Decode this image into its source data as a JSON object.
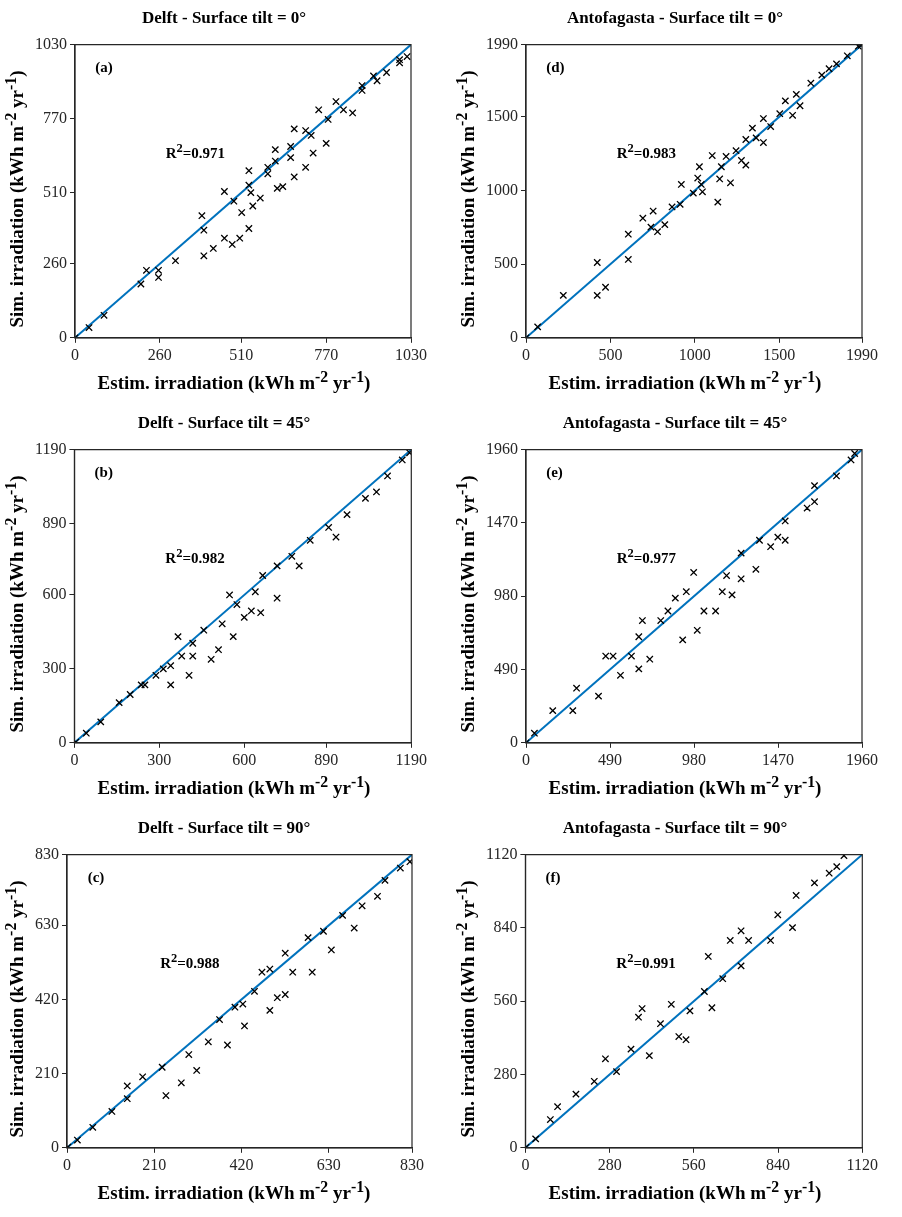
{
  "chart_data": [
    {
      "type": "scatter",
      "title": "Delft - Surface tilt = 0°",
      "xlabel": "Estim. irradiation (kWh m$^{-2}$ yr$^{-1}$)",
      "ylabel": "Sim. irradiation (kWh m$^{-2}$ yr$^{-1}$)",
      "annotations": [
        "(a)",
        "R$^{2}$=0.971"
      ],
      "xlim": [
        0,
        1030
      ],
      "ylim": [
        0,
        1030
      ],
      "xticks": [
        0,
        260,
        510,
        770,
        1030
      ],
      "yticks": [
        0,
        260,
        510,
        770,
        1030
      ],
      "grid": false,
      "legend": false,
      "series": [
        {
          "marker": "cross",
          "color": "#000000",
          "x": [
            0,
            43,
            89,
            202,
            219,
            256,
            256,
            308,
            395,
            389,
            395,
            424,
            458,
            482,
            505,
            533,
            458,
            487,
            511,
            533,
            533,
            539,
            545,
            568,
            591,
            591,
            614,
            614,
            620,
            637,
            661,
            661,
            672,
            707,
            672,
            707,
            724,
            730,
            770,
            747,
            776,
            800,
            823,
            851,
            880,
            880,
            915,
            926,
            955,
            995,
            1018,
            995
          ],
          "values": [
            0,
            36,
            79,
            189,
            237,
            212,
            237,
            271,
            378,
            429,
            288,
            314,
            350,
            328,
            350,
            384,
            514,
            480,
            440,
            536,
            587,
            510,
            463,
            491,
            599,
            576,
            661,
            621,
            525,
            531,
            672,
            633,
            565,
            599,
            734,
            728,
            711,
            649,
            683,
            801,
            767,
            830,
            801,
            790,
            869,
            886,
            920,
            903,
            932,
            966,
            988,
            977
          ]
        },
        {
          "type": "line",
          "marker": "none",
          "color": "#0072bd",
          "x": [
            0,
            1030
          ],
          "values": [
            0,
            1030
          ]
        }
      ]
    },
    {
      "type": "scatter",
      "title": "Antofagasta - Surface tilt = 0°",
      "xlabel": "Estim. irradiation (kWh m$^{-2}$ yr$^{-1}$)",
      "ylabel": "Sim. irradiation (kWh m$^{-2}$ yr$^{-1}$)",
      "annotations": [
        "(d)",
        "R$^{2}$=0.983"
      ],
      "xlim": [
        0,
        1990
      ],
      "ylim": [
        0,
        1990
      ],
      "xticks": [
        0,
        500,
        1000,
        1500,
        1990
      ],
      "yticks": [
        0,
        500,
        1000,
        1500,
        1990
      ],
      "grid": false,
      "legend": false,
      "series": [
        {
          "marker": "cross",
          "color": "#000000",
          "x": [
            0,
            69,
            221,
            422,
            422,
            471,
            606,
            606,
            692,
            753,
            740,
            779,
            822,
            865,
            913,
            920,
            991,
            1027,
            1017,
            1038,
            1045,
            1103,
            1157,
            1136,
            1147,
            1211,
            1185,
            1244,
            1276,
            1302,
            1302,
            1341,
            1406,
            1406,
            1363,
            1449,
            1503,
            1579,
            1536,
            1601,
            1623,
            1687,
            1752,
            1795,
            1839,
            1903,
            1968,
            1985
          ],
          "values": [
            0,
            74,
            288,
            511,
            288,
            343,
            703,
            532,
            812,
            860,
            751,
            720,
            768,
            888,
            906,
            1041,
            982,
            1161,
            1084,
            1041,
            991,
            1237,
            1161,
            921,
            1078,
            1052,
            1231,
            1270,
            1204,
            1172,
            1346,
            1423,
            1488,
            1325,
            1357,
            1434,
            1521,
            1510,
            1608,
            1652,
            1575,
            1728,
            1783,
            1826,
            1859,
            1914,
            1979,
            1985
          ]
        },
        {
          "type": "line",
          "marker": "none",
          "color": "#0072bd",
          "x": [
            0,
            1990
          ],
          "values": [
            0,
            1990
          ]
        }
      ]
    },
    {
      "type": "scatter",
      "title": "Delft - Surface tilt = 45°",
      "xlabel": "Estim. irradiation (kWh m$^{-2}$ yr$^{-1}$)",
      "ylabel": "Sim. irradiation (kWh m$^{-2}$ yr$^{-1}$)",
      "annotations": [
        "(b)",
        "R$^{2}$=0.982"
      ],
      "xlim": [
        0,
        1190
      ],
      "ylim": [
        0,
        1190
      ],
      "xticks": [
        0,
        300,
        600,
        890,
        1190
      ],
      "yticks": [
        0,
        300,
        600,
        890,
        1190
      ],
      "grid": false,
      "legend": false,
      "series": [
        {
          "marker": "cross",
          "color": "#000000",
          "x": [
            5,
            42,
            93,
            158,
            197,
            236,
            288,
            340,
            340,
            379,
            405,
            418,
            457,
            483,
            509,
            522,
            561,
            574,
            600,
            625,
            658,
            639,
            665,
            716,
            716,
            768,
            794,
            833,
            898,
            924,
            963,
            1028,
            1067,
            1106,
            1158,
            1184,
            418,
            314,
            249,
            548,
            366
          ],
          "values": [
            3,
            39,
            85,
            163,
            196,
            235,
            274,
            313,
            235,
            352,
            274,
            404,
            457,
            339,
            378,
            483,
            431,
            561,
            509,
            535,
            528,
            613,
            679,
            587,
            718,
            757,
            718,
            822,
            874,
            835,
            926,
            992,
            1018,
            1083,
            1148,
            1177,
            352,
            300,
            235,
            600,
            431
          ]
        },
        {
          "type": "line",
          "marker": "none",
          "color": "#0072bd",
          "x": [
            0,
            1190
          ],
          "values": [
            0,
            1190
          ]
        }
      ]
    },
    {
      "type": "scatter",
      "title": "Antofagasta - Surface tilt = 45°",
      "xlabel": "Estim. irradiation (kWh m$^{-2}$ yr$^{-1}$)",
      "ylabel": "Sim. irradiation (kWh m$^{-2}$ yr$^{-1}$)",
      "annotations": [
        "(e)",
        "R$^{2}$=0.977"
      ],
      "xlim": [
        0,
        1960
      ],
      "ylim": [
        0,
        1960
      ],
      "xticks": [
        0,
        490,
        980,
        1470,
        1960
      ],
      "yticks": [
        0,
        490,
        980,
        1470,
        1960
      ],
      "grid": false,
      "legend": false,
      "series": [
        {
          "marker": "cross",
          "color": "#000000",
          "x": [
            0,
            49,
            156,
            273,
            295,
            423,
            465,
            551,
            615,
            658,
            658,
            722,
            786,
            914,
            871,
            999,
            978,
            1106,
            1170,
            1202,
            1255,
            1341,
            1255,
            1362,
            1469,
            1512,
            1512,
            1640,
            1683,
            1683,
            1811,
            1896,
            1917,
            1038,
            1145,
            508,
            828,
            935,
            679,
            1427
          ],
          "values": [
            0,
            64,
            215,
            215,
            365,
            312,
            580,
            451,
            580,
            494,
            709,
            559,
            817,
            688,
            967,
            752,
            1139,
            881,
            1118,
            989,
            1096,
            1160,
            1268,
            1354,
            1375,
            1354,
            1483,
            1569,
            1612,
            1719,
            1784,
            1891,
            1934,
            881,
            1010,
            580,
            881,
            1010,
            817,
            1311
          ]
        },
        {
          "type": "line",
          "marker": "none",
          "color": "#0072bd",
          "x": [
            0,
            1960
          ],
          "values": [
            0,
            1960
          ]
        }
      ]
    },
    {
      "type": "scatter",
      "title": "Delft - Surface tilt = 90°",
      "xlabel": "Estim. irradiation (kWh m$^{-2}$ yr$^{-1}$)",
      "ylabel": "Sim. irradiation (kWh m$^{-2}$ yr$^{-1}$)",
      "annotations": [
        "(c)",
        "R$^{2}$=0.988"
      ],
      "xlim": [
        0,
        830
      ],
      "ylim": [
        0,
        830
      ],
      "xticks": [
        0,
        210,
        420,
        630,
        830
      ],
      "yticks": [
        0,
        210,
        420,
        630,
        830
      ],
      "grid": false,
      "legend": false,
      "series": [
        {
          "marker": "cross",
          "color": "#000000",
          "x": [
            2,
            25,
            62,
            108,
            145,
            145,
            182,
            238,
            275,
            229,
            293,
            312,
            340,
            386,
            367,
            427,
            423,
            451,
            488,
            506,
            488,
            525,
            543,
            590,
            580,
            617,
            636,
            663,
            691,
            710,
            747,
            765,
            802,
            825,
            469,
            404,
            525
          ],
          "values": [
            2,
            22,
            58,
            103,
            175,
            139,
            201,
            148,
            184,
            228,
            264,
            219,
            300,
            291,
            363,
            345,
            407,
            443,
            506,
            425,
            389,
            551,
            497,
            497,
            595,
            613,
            560,
            658,
            622,
            685,
            712,
            757,
            792,
            810,
            497,
            398,
            434
          ]
        },
        {
          "type": "line",
          "marker": "none",
          "color": "#0072bd",
          "x": [
            0,
            830
          ],
          "values": [
            0,
            830
          ]
        }
      ]
    },
    {
      "type": "scatter",
      "title": "Antofagasta - Surface tilt = 90°",
      "xlabel": "Estim. irradiation (kWh m$^{-2}$ yr$^{-1}$)",
      "ylabel": "Sim. irradiation (kWh m$^{-2}$ yr$^{-1}$)",
      "annotations": [
        "(f)",
        "R$^{2}$=0.991"
      ],
      "xlim": [
        0,
        1120
      ],
      "ylim": [
        0,
        1120
      ],
      "xticks": [
        0,
        280,
        560,
        840,
        1120
      ],
      "yticks": [
        0,
        280,
        560,
        840,
        1120
      ],
      "grid": false,
      "legend": false,
      "series": [
        {
          "marker": "cross",
          "color": "#000000",
          "x": [
            2,
            34,
            83,
            107,
            168,
            229,
            266,
            303,
            351,
            376,
            412,
            449,
            485,
            510,
            547,
            595,
            620,
            608,
            656,
            681,
            717,
            742,
            717,
            839,
            815,
            888,
            900,
            961,
            1010,
            1059,
            1035,
            534,
            388
          ],
          "values": [
            2,
            34,
            108,
            157,
            205,
            254,
            340,
            291,
            377,
            499,
            352,
            474,
            548,
            425,
            523,
            597,
            535,
            731,
            646,
            792,
            695,
            792,
            829,
            890,
            792,
            841,
            964,
            1012,
            1049,
            1116,
            1074,
            413,
            532
          ]
        },
        {
          "type": "line",
          "marker": "none",
          "color": "#0072bd",
          "x": [
            0,
            1120
          ],
          "values": [
            0,
            1120
          ]
        }
      ]
    }
  ]
}
